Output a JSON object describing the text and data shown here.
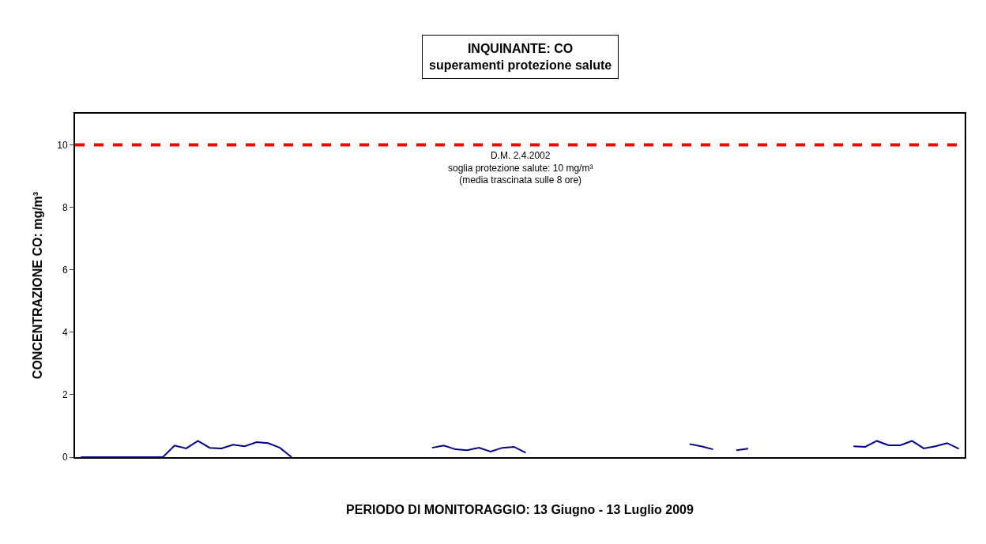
{
  "chart_data": {
    "type": "line",
    "title": "INQUINANTE: CO\nsuperamenti protezione salute",
    "xlabel": "PERIODO DI MONITORAGGIO: 13 Giugno - 13 Luglio 2009",
    "ylabel": "CONCENTRAZIONE CO: mg/m³",
    "categories": [
      null,
      null,
      null,
      null,
      null,
      null,
      null,
      null,
      null,
      null,
      null,
      null,
      null,
      null,
      null,
      null,
      null,
      null,
      null,
      null,
      null,
      null,
      null,
      null,
      null,
      null,
      null,
      null,
      null,
      null,
      null,
      null,
      null,
      null,
      null,
      null,
      null,
      null,
      null,
      null,
      null,
      null,
      null,
      null,
      null,
      null,
      null,
      null,
      null,
      null,
      null,
      null,
      null,
      null,
      null,
      null,
      null,
      null,
      null,
      null,
      null,
      null,
      null,
      null,
      null,
      null,
      null,
      null,
      null,
      null,
      null,
      null,
      null,
      null,
      null,
      null
    ],
    "series": [
      {
        "color": "#000080",
        "values": [
          0,
          0,
          0,
          0,
          0,
          0,
          0,
          0,
          0.37,
          0.28,
          0.52,
          0.3,
          0.28,
          0.4,
          0.35,
          0.48,
          0.45,
          0.3,
          0,
          null,
          null,
          null,
          null,
          null,
          null,
          null,
          null,
          null,
          null,
          null,
          0.3,
          0.37,
          0.25,
          0.22,
          0.3,
          0.18,
          0.3,
          0.33,
          0.14,
          null,
          null,
          null,
          null,
          null,
          null,
          null,
          null,
          null,
          null,
          null,
          null,
          null,
          0.42,
          0.35,
          0.25,
          null,
          0.22,
          0.27,
          null,
          null,
          null,
          null,
          null,
          null,
          null,
          null,
          0.35,
          0.33,
          0.52,
          0.38,
          0.38,
          0.52,
          0.28,
          0.35,
          0.45,
          0.27
        ]
      }
    ],
    "ylim": [
      0,
      11
    ],
    "yticks": [
      0,
      2,
      4,
      6,
      8,
      10
    ],
    "ref_lines": [
      {
        "axis": "y",
        "value": 10,
        "label": "D.M. 2.4.2002\nsoglia protezione salute: 10 mg/m³\n(media trascinata sulle 8 ore)",
        "color": "#ff0000",
        "line_style": "dashed"
      }
    ],
    "marker": "none",
    "line_style": "solid",
    "tick_labels": "y"
  }
}
